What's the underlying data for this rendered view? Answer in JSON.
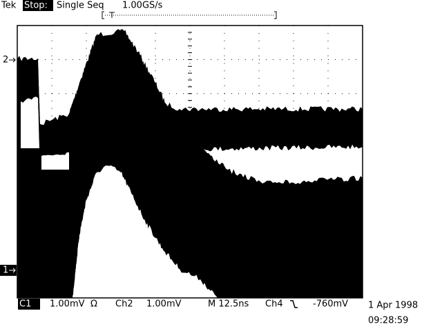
{
  "header": {
    "brand": "Tek",
    "state": "Stop:",
    "mode": "Single Seq",
    "sample_rate": "1.00GS/s"
  },
  "markers": {
    "ch2": "2",
    "ch1": "1"
  },
  "status": {
    "ch1_label": "C1",
    "ch1_scale": "1.00mV",
    "ch1_coupling": "Ω",
    "ch2_label": "Ch2",
    "ch2_scale": "1.00mV",
    "timebase": "M 12.5ns",
    "trigger_source": "Ch4",
    "trigger_level": "-760mV",
    "date": "1 Apr 1998",
    "time": "09:28:59"
  }
}
